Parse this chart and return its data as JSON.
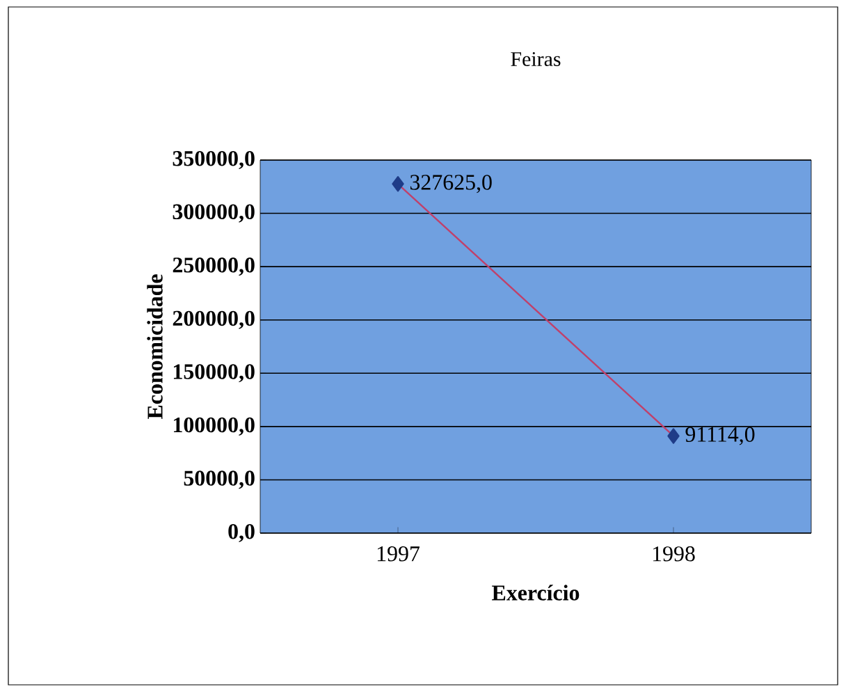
{
  "chart_data": {
    "type": "line",
    "title": "Feiras",
    "xlabel": "Exercício",
    "ylabel": "Economicidade",
    "categories": [
      "1997",
      "1998"
    ],
    "series": [
      {
        "color": "#c0406a",
        "values": [
          327625,
          91114
        ],
        "value_labels": [
          "327625,0",
          "91114,0"
        ]
      }
    ],
    "ylim": [
      0,
      350000
    ],
    "yticks": [
      {
        "value": 0,
        "label": "0,0"
      },
      {
        "value": 50000,
        "label": "50000,0"
      },
      {
        "value": 100000,
        "label": "100000,0"
      },
      {
        "value": 150000,
        "label": "150000,0"
      },
      {
        "value": 200000,
        "label": "200000,0"
      },
      {
        "value": 250000,
        "label": "250000,0"
      },
      {
        "value": 300000,
        "label": "300000,0"
      },
      {
        "value": 350000,
        "label": "350000,0"
      }
    ],
    "grid": "y",
    "marker": "diamond",
    "line_style": "solid"
  }
}
